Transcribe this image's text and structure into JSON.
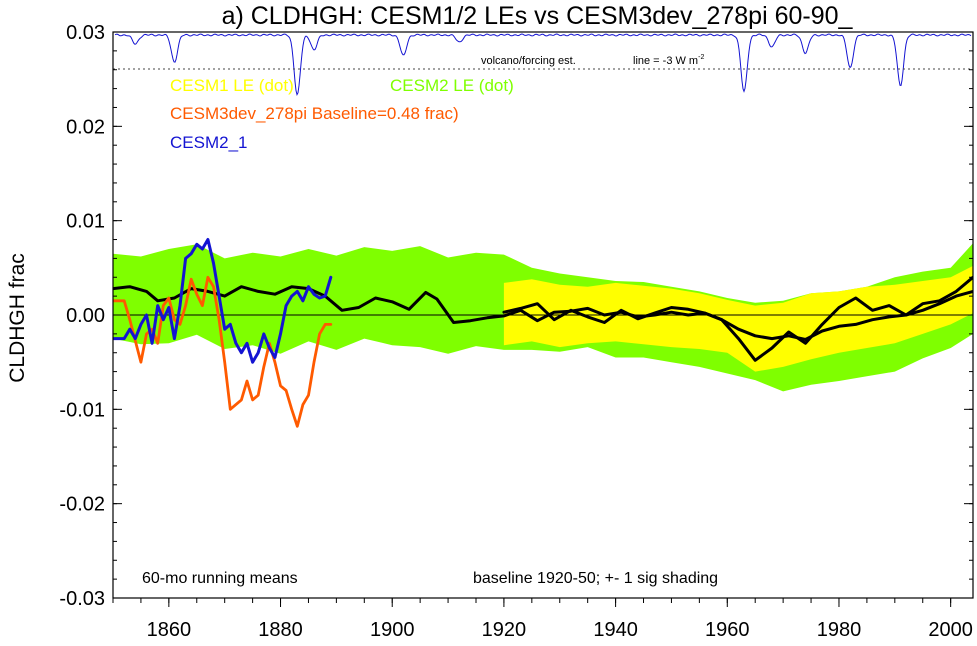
{
  "chart_data": {
    "type": "line",
    "title": "a) CLDHGH: CESM1/2 LEs vs CESM3dev_278pi 60-90_",
    "ylabel": "CLDHGH frac",
    "xlabel": "",
    "xlim": [
      1850,
      2004
    ],
    "ylim": [
      -0.03,
      0.03
    ],
    "x_ticks": [
      1860,
      1880,
      1900,
      1920,
      1940,
      1960,
      1980,
      2000
    ],
    "y_ticks": [
      -0.03,
      -0.02,
      -0.01,
      0.0,
      0.01,
      0.02,
      0.03
    ],
    "y_tick_labels": [
      "-0.03",
      "-0.02",
      "-0.01",
      "0.00",
      "0.01",
      "0.02",
      "0.03"
    ],
    "zero_line": true,
    "grid": false,
    "legend": [
      {
        "text": "CESM1 LE (dot)",
        "color": "#ffff00"
      },
      {
        "text": "CESM2 LE (dot)",
        "color": "#7fff00"
      },
      {
        "text": "CESM3dev_278pi Baseline=0.48 frac)",
        "color": "#ff5a00"
      },
      {
        "text": "CESM2_1",
        "color": "#1414d2"
      }
    ],
    "annotations": {
      "bottom_left": "60-mo running means",
      "bottom_right": "baseline 1920-50; +- 1 sig shading",
      "volcano_label": "volcano/forcing est.",
      "volcano_line_label": "line = -3 W m",
      "volcano_line_sup": "-2"
    },
    "colors": {
      "cesm1_band": "#ffff00",
      "cesm2_band": "#7fff00",
      "ensemble_mean": "#000000",
      "cesm3dev": "#ff5a00",
      "cesm2_1": "#1414d2",
      "volcano": "#1414d2"
    },
    "bands": [
      {
        "name": "CESM2 LE",
        "x": [
          1850,
          1855,
          1860,
          1865,
          1870,
          1875,
          1880,
          1885,
          1890,
          1895,
          1900,
          1905,
          1910,
          1915,
          1920,
          1925,
          1930,
          1935,
          1940,
          1945,
          1950,
          1955,
          1960,
          1965,
          1970,
          1975,
          1980,
          1985,
          1990,
          1995,
          2000,
          2004
        ],
        "upper": [
          0.0065,
          0.0062,
          0.007,
          0.0075,
          0.006,
          0.0066,
          0.0062,
          0.007,
          0.0063,
          0.0072,
          0.0068,
          0.0073,
          0.0061,
          0.0066,
          0.0064,
          0.005,
          0.0044,
          0.004,
          0.0036,
          0.0035,
          0.003,
          0.0025,
          0.0018,
          0.0013,
          0.0015,
          0.0023,
          0.0025,
          0.003,
          0.004,
          0.0046,
          0.005,
          0.0076
        ],
        "lower": [
          -0.0025,
          -0.0031,
          -0.003,
          -0.0021,
          -0.0036,
          -0.0032,
          -0.0041,
          -0.0028,
          -0.0037,
          -0.0025,
          -0.0032,
          -0.0034,
          -0.0041,
          -0.0033,
          -0.0037,
          -0.0037,
          -0.0039,
          -0.0034,
          -0.0045,
          -0.0045,
          -0.005,
          -0.0055,
          -0.0062,
          -0.0069,
          -0.0081,
          -0.0074,
          -0.007,
          -0.0065,
          -0.006,
          -0.0046,
          -0.0035,
          -0.002
        ]
      },
      {
        "name": "CESM1 LE",
        "x": [
          1920,
          1925,
          1930,
          1935,
          1940,
          1945,
          1950,
          1955,
          1960,
          1965,
          1970,
          1975,
          1980,
          1985,
          1990,
          1995,
          2000,
          2004
        ],
        "upper": [
          0.0034,
          0.0038,
          0.0032,
          0.003,
          0.0034,
          0.0031,
          0.0028,
          0.0023,
          0.0016,
          0.001,
          0.0013,
          0.0023,
          0.0025,
          0.003,
          0.0032,
          0.0036,
          0.004,
          0.0052
        ],
        "lower": [
          -0.0032,
          -0.0028,
          -0.0034,
          -0.003,
          -0.0028,
          -0.0031,
          -0.0034,
          -0.0036,
          -0.004,
          -0.006,
          -0.0055,
          -0.0047,
          -0.004,
          -0.0035,
          -0.003,
          -0.002,
          -0.001,
          0.0002
        ]
      }
    ],
    "series": [
      {
        "name": "CESM2 LE ensemble mean",
        "x": [
          1850,
          1853,
          1856,
          1858,
          1861,
          1864,
          1867,
          1870,
          1873,
          1876,
          1879,
          1882,
          1885,
          1888,
          1891,
          1894,
          1897,
          1900,
          1903,
          1906,
          1908,
          1911,
          1914,
          1917,
          1920,
          1923,
          1926,
          1929,
          1932,
          1935,
          1938,
          1941,
          1944,
          1947,
          1950,
          1953,
          1956,
          1959,
          1962,
          1965,
          1968,
          1971,
          1974,
          1977,
          1980,
          1983,
          1986,
          1989,
          1992,
          1995,
          1998,
          2001,
          2004
        ],
        "y": [
          0.0028,
          0.003,
          0.0025,
          0.0015,
          0.0018,
          0.0028,
          0.0025,
          0.002,
          0.003,
          0.0025,
          0.0022,
          0.003,
          0.0028,
          0.002,
          0.0005,
          0.0008,
          0.0018,
          0.0014,
          0.0006,
          0.0024,
          0.0017,
          -0.0008,
          -0.0006,
          -0.0003,
          -0.0001,
          0.0005,
          -0.0006,
          0.0003,
          0.0004,
          0.0007,
          0.0,
          0.0003,
          -0.0002,
          0.0,
          0.0003,
          0.0,
          0.0002,
          -0.0005,
          -0.0015,
          -0.0022,
          -0.0025,
          -0.0022,
          -0.0026,
          -0.0017,
          -0.0012,
          -0.001,
          -0.0005,
          -0.0002,
          0.0,
          0.0005,
          0.0012,
          0.002,
          0.0025
        ]
      },
      {
        "name": "CESM1 LE ensemble mean",
        "x": [
          1920,
          1923,
          1926,
          1929,
          1932,
          1935,
          1938,
          1941,
          1944,
          1947,
          1950,
          1953,
          1956,
          1959,
          1962,
          1965,
          1968,
          1971,
          1974,
          1977,
          1980,
          1983,
          1986,
          1989,
          1992,
          1995,
          1998,
          2001,
          2004
        ],
        "y": [
          0.0003,
          0.0007,
          0.0012,
          -0.0005,
          0.0005,
          -0.0002,
          -0.0008,
          0.0005,
          -0.0004,
          0.0002,
          0.0008,
          0.0006,
          0.0002,
          -0.0005,
          -0.0025,
          -0.0048,
          -0.0035,
          -0.0018,
          -0.003,
          -0.001,
          0.0008,
          0.0018,
          0.0005,
          0.001,
          0.0,
          0.0012,
          0.0015,
          0.0025,
          0.004
        ]
      },
      {
        "name": "CESM3dev_278pi",
        "x": [
          1850,
          1852,
          1853,
          1855,
          1856,
          1857,
          1858,
          1859,
          1860,
          1861,
          1862,
          1863,
          1864,
          1865,
          1866,
          1867,
          1868,
          1869,
          1870,
          1871,
          1872,
          1873,
          1874,
          1875,
          1876,
          1877,
          1878,
          1879,
          1880,
          1881,
          1882,
          1883,
          1884,
          1885,
          1886,
          1887,
          1888,
          1889
        ],
        "y": [
          0.0015,
          0.0015,
          -0.0005,
          -0.005,
          -0.002,
          -0.0015,
          -0.003,
          0.001,
          0.0018,
          -0.0005,
          -0.001,
          0.001,
          0.0038,
          0.0022,
          0.001,
          0.004,
          0.003,
          -0.0005,
          -0.005,
          -0.01,
          -0.0095,
          -0.009,
          -0.007,
          -0.009,
          -0.0085,
          -0.0055,
          -0.003,
          -0.005,
          -0.0075,
          -0.008,
          -0.01,
          -0.0118,
          -0.0095,
          -0.0085,
          -0.005,
          -0.002,
          -0.001,
          -0.001
        ]
      },
      {
        "name": "CESM2_1",
        "x": [
          1850,
          1852,
          1853,
          1854,
          1855,
          1856,
          1857,
          1858,
          1859,
          1860,
          1861,
          1862,
          1863,
          1864,
          1865,
          1866,
          1867,
          1868,
          1869,
          1870,
          1871,
          1872,
          1873,
          1874,
          1875,
          1876,
          1877,
          1878,
          1879,
          1880,
          1881,
          1882,
          1883,
          1884,
          1885,
          1886,
          1887,
          1888,
          1889
        ],
        "y": [
          -0.0025,
          -0.0025,
          -0.0015,
          -0.0025,
          -0.001,
          0.0,
          -0.003,
          0.001,
          -0.0005,
          0.0008,
          -0.0025,
          0.001,
          0.006,
          0.0065,
          0.0075,
          0.007,
          0.008,
          0.0055,
          0.002,
          -0.0015,
          -0.001,
          -0.003,
          -0.004,
          -0.003,
          -0.005,
          -0.004,
          -0.002,
          -0.0035,
          -0.0045,
          -0.002,
          0.001,
          0.002,
          0.0025,
          0.0015,
          0.003,
          0.0022,
          0.0018,
          0.002,
          0.004
        ]
      }
    ],
    "volcano_forcing": {
      "threshold": -3,
      "dips": [
        {
          "year": 1854,
          "depth": 0.15
        },
        {
          "year": 1861,
          "depth": 0.45
        },
        {
          "year": 1883,
          "depth": 1.0
        },
        {
          "year": 1886,
          "depth": 0.25
        },
        {
          "year": 1902,
          "depth": 0.35
        },
        {
          "year": 1912,
          "depth": 0.12
        },
        {
          "year": 1963,
          "depth": 0.95
        },
        {
          "year": 1968,
          "depth": 0.2
        },
        {
          "year": 1974,
          "depth": 0.3
        },
        {
          "year": 1982,
          "depth": 0.55
        },
        {
          "year": 1991,
          "depth": 0.85
        }
      ]
    }
  }
}
